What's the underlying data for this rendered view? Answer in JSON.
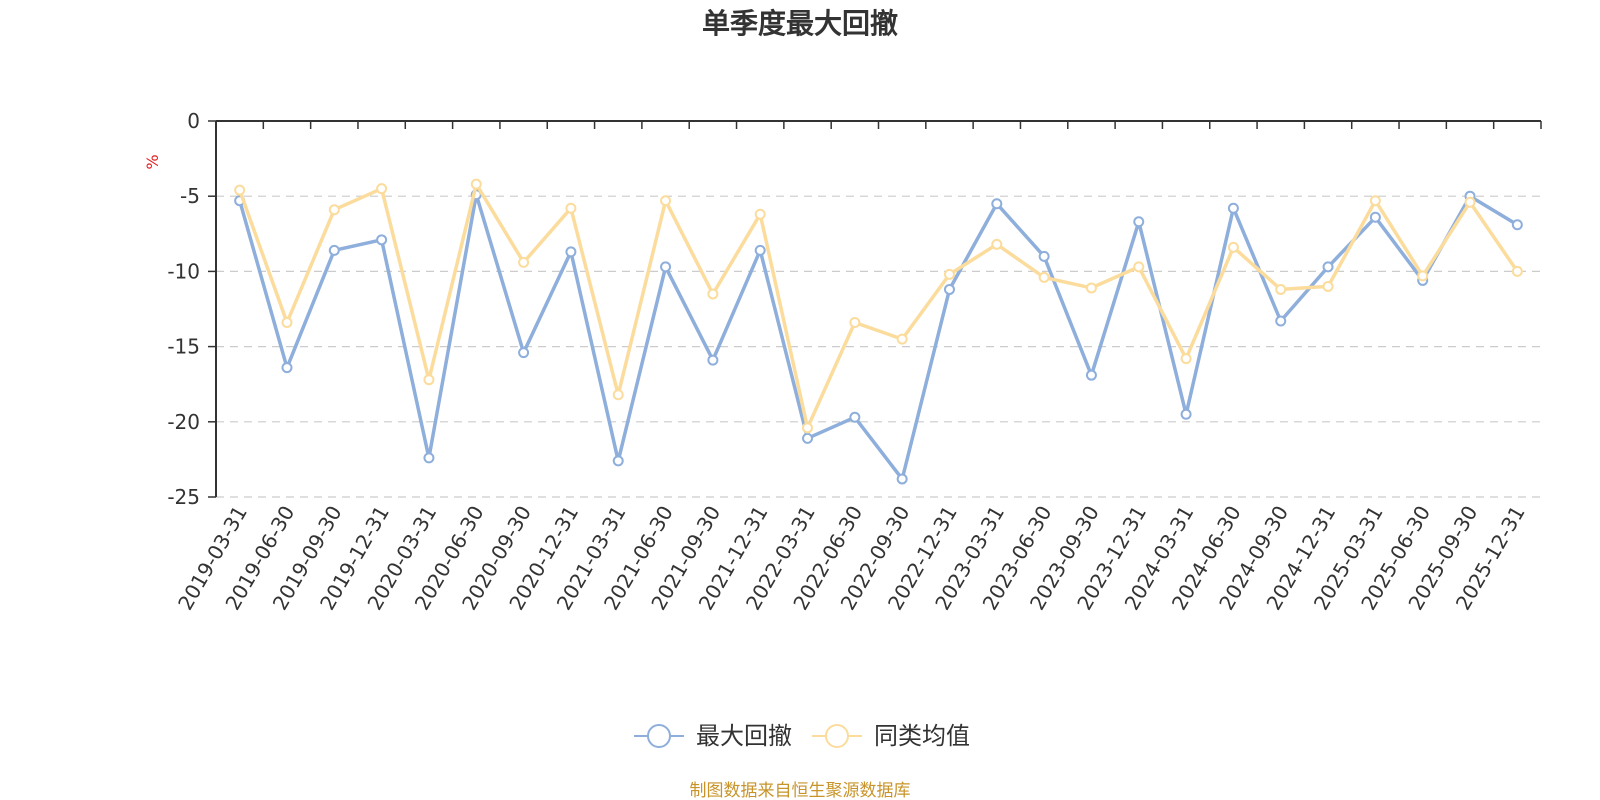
{
  "chart_data": {
    "type": "line",
    "title": "单季度最大回撤",
    "ylabel": "%",
    "ylim": [
      -25,
      0
    ],
    "yticks": [
      0,
      -5,
      -10,
      -15,
      -20,
      -25
    ],
    "grid": true,
    "legend_position": "bottom-center",
    "categories": [
      "2019-03-31",
      "2019-06-30",
      "2019-09-30",
      "2019-12-31",
      "2020-03-31",
      "2020-06-30",
      "2020-09-30",
      "2020-12-31",
      "2021-03-31",
      "2021-06-30",
      "2021-09-30",
      "2021-12-31",
      "2022-03-31",
      "2022-06-30",
      "2022-09-30",
      "2022-12-31",
      "2023-03-31",
      "2023-06-30",
      "2023-09-30",
      "2023-12-31",
      "2024-03-31",
      "2024-06-30",
      "2024-09-30",
      "2024-12-31",
      "2025-03-31",
      "2025-06-30",
      "2025-09-30",
      "2025-12-31"
    ],
    "series": [
      {
        "name": "最大回撤",
        "color": "#8eaedb",
        "values": [
          -5.3,
          -16.4,
          -8.6,
          -7.9,
          -22.4,
          -4.9,
          -15.4,
          -8.7,
          -22.6,
          -9.7,
          -15.9,
          -8.6,
          -21.1,
          -19.7,
          -23.8,
          -11.2,
          -5.5,
          -9.0,
          -16.9,
          -6.7,
          -19.5,
          -5.8,
          -13.3,
          -9.7,
          -6.4,
          -10.6,
          -5.0,
          -6.9
        ]
      },
      {
        "name": "同类均值",
        "color": "#fbdc9c",
        "values": [
          -4.6,
          -13.4,
          -5.9,
          -4.5,
          -17.2,
          -4.2,
          -9.4,
          -5.8,
          -18.2,
          -5.3,
          -11.5,
          -6.2,
          -20.4,
          -13.4,
          -14.5,
          -10.2,
          -8.2,
          -10.4,
          -11.1,
          -9.7,
          -15.8,
          -8.4,
          -11.2,
          -11.0,
          -5.3,
          -10.3,
          -5.4,
          -10.0
        ]
      }
    ],
    "source_text": "制图数据来自恒生聚源数据库",
    "colors": {
      "axis": "#333333",
      "grid": "#cccccc",
      "unit": "#e02020",
      "source": "#c8942a"
    }
  }
}
